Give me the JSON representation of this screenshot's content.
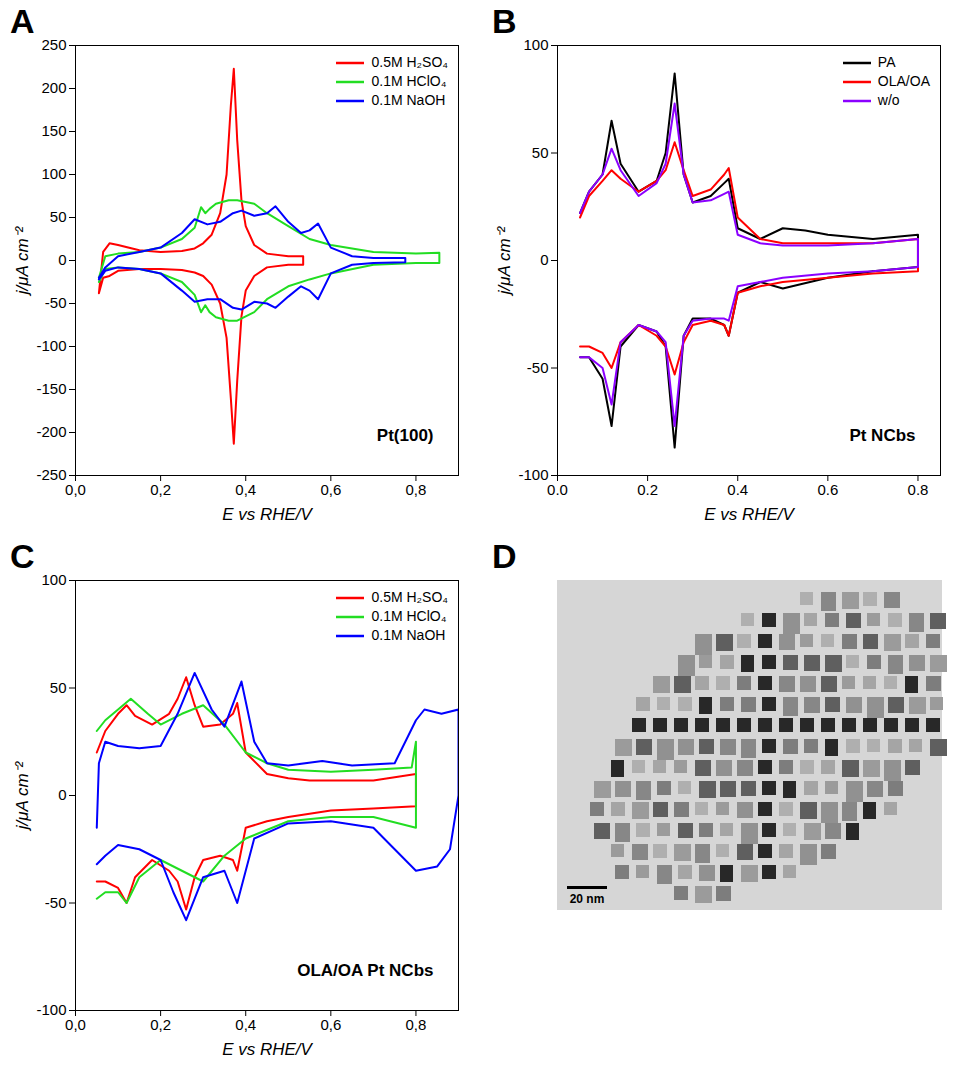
{
  "chart_data": [
    {
      "type": "line",
      "title": "A",
      "annotation": "Pt(100)",
      "x_label": "E vs RHE/V",
      "y_label": "j/μA cm⁻²",
      "xlim": [
        0,
        0.9
      ],
      "ylim": [
        -250,
        250
      ],
      "xticks": [
        {
          "value": 0,
          "label": "0,0"
        },
        {
          "value": 0.2,
          "label": "0,2"
        },
        {
          "value": 0.4,
          "label": "0,4"
        },
        {
          "value": 0.6,
          "label": "0,6"
        },
        {
          "value": 0.8,
          "label": "0,8"
        }
      ],
      "yticks": [
        -250,
        -200,
        -150,
        -100,
        -50,
        0,
        50,
        100,
        150,
        200,
        250
      ],
      "grid": false,
      "legend": "top-right",
      "series": [
        {
          "name": "0.5M H₂SO₄",
          "color": "#ff0000",
          "x": [
            0.055,
            0.065,
            0.08,
            0.1,
            0.15,
            0.2,
            0.25,
            0.28,
            0.3,
            0.32,
            0.34,
            0.355,
            0.365,
            0.372,
            0.38,
            0.39,
            0.4,
            0.42,
            0.45,
            0.5,
            0.535,
            0.535,
            0.5,
            0.45,
            0.42,
            0.4,
            0.39,
            0.38,
            0.372,
            0.365,
            0.355,
            0.34,
            0.32,
            0.3,
            0.28,
            0.25,
            0.2,
            0.15,
            0.1,
            0.08,
            0.065,
            0.055
          ],
          "values": [
            -38,
            10,
            20,
            18,
            12,
            10,
            11,
            14,
            20,
            30,
            55,
            100,
            180,
            223,
            140,
            70,
            40,
            18,
            8,
            5,
            5,
            -5,
            -5,
            -8,
            -18,
            -35,
            -65,
            -140,
            -213,
            -160,
            -90,
            -50,
            -28,
            -18,
            -14,
            -11,
            -10,
            -10,
            -12,
            -18,
            -20,
            -38
          ]
        },
        {
          "name": "0.1M HClO₄",
          "color": "#22dd22",
          "x": [
            0.055,
            0.07,
            0.1,
            0.15,
            0.2,
            0.25,
            0.28,
            0.295,
            0.305,
            0.315,
            0.33,
            0.36,
            0.38,
            0.42,
            0.45,
            0.5,
            0.55,
            0.6,
            0.7,
            0.8,
            0.855,
            0.855,
            0.8,
            0.7,
            0.6,
            0.55,
            0.5,
            0.45,
            0.42,
            0.38,
            0.36,
            0.33,
            0.315,
            0.305,
            0.295,
            0.28,
            0.25,
            0.2,
            0.15,
            0.1,
            0.07,
            0.055
          ],
          "values": [
            -20,
            5,
            8,
            10,
            15,
            25,
            38,
            62,
            55,
            60,
            66,
            70,
            70,
            66,
            55,
            40,
            25,
            18,
            10,
            8,
            9,
            -3,
            -3,
            -5,
            -15,
            -22,
            -30,
            -45,
            -60,
            -70,
            -70,
            -66,
            -60,
            -52,
            -60,
            -40,
            -25,
            -15,
            -10,
            -8,
            -10,
            -25
          ]
        },
        {
          "name": "0.1M NaOH",
          "color": "#0000ff",
          "x": [
            0.055,
            0.07,
            0.1,
            0.15,
            0.2,
            0.25,
            0.28,
            0.31,
            0.34,
            0.37,
            0.39,
            0.42,
            0.45,
            0.47,
            0.5,
            0.53,
            0.55,
            0.57,
            0.6,
            0.65,
            0.7,
            0.775,
            0.775,
            0.7,
            0.65,
            0.6,
            0.57,
            0.55,
            0.53,
            0.5,
            0.47,
            0.45,
            0.42,
            0.39,
            0.37,
            0.34,
            0.31,
            0.28,
            0.25,
            0.2,
            0.15,
            0.1,
            0.07,
            0.055
          ],
          "values": [
            -20,
            -8,
            5,
            10,
            15,
            32,
            48,
            42,
            45,
            55,
            58,
            52,
            55,
            63,
            45,
            32,
            35,
            43,
            15,
            5,
            3,
            3,
            -2,
            -3,
            -5,
            -15,
            -45,
            -35,
            -30,
            -42,
            -55,
            -50,
            -48,
            -57,
            -55,
            -45,
            -45,
            -48,
            -35,
            -15,
            -10,
            -8,
            -12,
            -22
          ]
        }
      ]
    },
    {
      "type": "line",
      "title": "B",
      "annotation": "Pt NCbs",
      "x_label": "E vs RHE/V",
      "y_label": "j/μA cm⁻²",
      "xlim": [
        0,
        0.85
      ],
      "ylim": [
        -100,
        100
      ],
      "xticks": [
        {
          "value": 0,
          "label": "0.0"
        },
        0.2,
        0.4,
        0.6,
        0.8
      ],
      "yticks": [
        -100,
        -50,
        0,
        50,
        100
      ],
      "grid": false,
      "legend": "top-right",
      "series": [
        {
          "name": "PA",
          "color": "#000000",
          "x": [
            0.05,
            0.07,
            0.1,
            0.12,
            0.14,
            0.18,
            0.22,
            0.24,
            0.26,
            0.28,
            0.3,
            0.34,
            0.37,
            0.38,
            0.4,
            0.45,
            0.5,
            0.55,
            0.6,
            0.7,
            0.8,
            0.8,
            0.7,
            0.6,
            0.5,
            0.45,
            0.4,
            0.38,
            0.37,
            0.34,
            0.3,
            0.28,
            0.26,
            0.24,
            0.22,
            0.18,
            0.14,
            0.12,
            0.1,
            0.07,
            0.05
          ],
          "values": [
            22,
            32,
            40,
            65,
            45,
            32,
            37,
            50,
            87,
            40,
            27,
            30,
            36,
            38,
            15,
            10,
            15,
            14,
            12,
            10,
            12,
            -3,
            -5,
            -8,
            -13,
            -10,
            -15,
            -35,
            -30,
            -27,
            -27,
            -35,
            -87,
            -40,
            -33,
            -30,
            -40,
            -77,
            -55,
            -45,
            -45
          ]
        },
        {
          "name": "OLA/OA",
          "color": "#ff0000",
          "x": [
            0.05,
            0.07,
            0.1,
            0.12,
            0.14,
            0.18,
            0.22,
            0.24,
            0.26,
            0.28,
            0.3,
            0.34,
            0.37,
            0.38,
            0.4,
            0.45,
            0.5,
            0.55,
            0.6,
            0.7,
            0.8,
            0.8,
            0.7,
            0.6,
            0.5,
            0.45,
            0.4,
            0.38,
            0.37,
            0.34,
            0.3,
            0.28,
            0.26,
            0.24,
            0.22,
            0.18,
            0.14,
            0.12,
            0.1,
            0.07,
            0.05
          ],
          "values": [
            20,
            30,
            37,
            42,
            38,
            32,
            37,
            42,
            55,
            42,
            30,
            33,
            40,
            43,
            20,
            10,
            8,
            8,
            8,
            8,
            10,
            -5,
            -6,
            -8,
            -10,
            -12,
            -15,
            -35,
            -30,
            -28,
            -30,
            -38,
            -53,
            -40,
            -35,
            -30,
            -38,
            -50,
            -43,
            -40,
            -40
          ]
        },
        {
          "name": "w/o",
          "color": "#8b00ff",
          "x": [
            0.05,
            0.07,
            0.1,
            0.12,
            0.14,
            0.18,
            0.22,
            0.24,
            0.26,
            0.28,
            0.3,
            0.34,
            0.37,
            0.38,
            0.4,
            0.45,
            0.5,
            0.55,
            0.6,
            0.7,
            0.8,
            0.8,
            0.7,
            0.6,
            0.5,
            0.45,
            0.4,
            0.38,
            0.37,
            0.34,
            0.3,
            0.28,
            0.26,
            0.24,
            0.22,
            0.18,
            0.14,
            0.12,
            0.1,
            0.07,
            0.05
          ],
          "values": [
            22,
            32,
            40,
            52,
            42,
            30,
            36,
            45,
            73,
            40,
            27,
            28,
            31,
            32,
            12,
            8,
            7,
            7,
            7,
            8,
            10,
            -3,
            -5,
            -6,
            -8,
            -10,
            -12,
            -28,
            -27,
            -27,
            -28,
            -35,
            -77,
            -38,
            -33,
            -30,
            -38,
            -67,
            -50,
            -45,
            -45
          ]
        }
      ]
    },
    {
      "type": "line",
      "title": "C",
      "annotation": "OLA/OA Pt NCbs",
      "x_label": "E vs RHE/V",
      "y_label": "j/μA cm⁻²",
      "xlim": [
        0,
        0.9
      ],
      "ylim": [
        -100,
        100
      ],
      "xticks": [
        {
          "value": 0,
          "label": "0,0"
        },
        {
          "value": 0.2,
          "label": "0,2"
        },
        {
          "value": 0.4,
          "label": "0,4"
        },
        {
          "value": 0.6,
          "label": "0,6"
        },
        {
          "value": 0.8,
          "label": "0,8"
        }
      ],
      "yticks": [
        -100,
        -50,
        0,
        50,
        100
      ],
      "grid": false,
      "legend": "top-right",
      "series": [
        {
          "name": "0.5M H₂SO₄",
          "color": "#ff0000",
          "x": [
            0.05,
            0.07,
            0.1,
            0.12,
            0.14,
            0.18,
            0.22,
            0.24,
            0.26,
            0.28,
            0.3,
            0.34,
            0.37,
            0.38,
            0.4,
            0.45,
            0.5,
            0.55,
            0.6,
            0.7,
            0.8,
            0.8,
            0.7,
            0.6,
            0.5,
            0.45,
            0.4,
            0.38,
            0.37,
            0.34,
            0.3,
            0.28,
            0.26,
            0.24,
            0.22,
            0.18,
            0.14,
            0.12,
            0.1,
            0.07,
            0.05
          ],
          "values": [
            20,
            30,
            38,
            42,
            37,
            33,
            38,
            45,
            55,
            42,
            32,
            33,
            38,
            43,
            20,
            10,
            8,
            7,
            7,
            7,
            10,
            -5,
            -6,
            -7,
            -10,
            -12,
            -15,
            -35,
            -30,
            -28,
            -30,
            -38,
            -53,
            -40,
            -35,
            -30,
            -38,
            -50,
            -43,
            -40,
            -40
          ]
        },
        {
          "name": "0.1M HClO₄",
          "color": "#22dd22",
          "x": [
            0.05,
            0.07,
            0.1,
            0.13,
            0.17,
            0.2,
            0.25,
            0.3,
            0.35,
            0.4,
            0.45,
            0.5,
            0.6,
            0.7,
            0.79,
            0.8,
            0.8,
            0.7,
            0.6,
            0.5,
            0.4,
            0.35,
            0.3,
            0.25,
            0.2,
            0.15,
            0.12,
            0.1,
            0.07,
            0.05
          ],
          "values": [
            30,
            35,
            40,
            45,
            38,
            33,
            38,
            42,
            33,
            20,
            15,
            12,
            11,
            12,
            13,
            25,
            -15,
            -10,
            -10,
            -12,
            -20,
            -28,
            -40,
            -35,
            -30,
            -38,
            -50,
            -45,
            -45,
            -48
          ]
        },
        {
          "name": "0.1M NaOH",
          "color": "#0000ff",
          "x": [
            0.05,
            0.055,
            0.07,
            0.1,
            0.15,
            0.2,
            0.24,
            0.28,
            0.32,
            0.35,
            0.39,
            0.42,
            0.45,
            0.5,
            0.58,
            0.65,
            0.75,
            0.8,
            0.82,
            0.86,
            0.9,
            0.9,
            0.88,
            0.85,
            0.8,
            0.75,
            0.7,
            0.6,
            0.5,
            0.42,
            0.38,
            0.35,
            0.3,
            0.26,
            0.23,
            0.2,
            0.15,
            0.1,
            0.07,
            0.05
          ],
          "values": [
            -15,
            15,
            25,
            23,
            22,
            23,
            38,
            57,
            40,
            32,
            53,
            25,
            15,
            14,
            16,
            14,
            15,
            35,
            40,
            38,
            40,
            0,
            -25,
            -33,
            -35,
            -25,
            -15,
            -12,
            -13,
            -20,
            -50,
            -35,
            -38,
            -58,
            -45,
            -30,
            -25,
            -23,
            -28,
            -32
          ]
        }
      ]
    }
  ],
  "image_panel": {
    "title": "D",
    "scale_bar": "20 nm"
  }
}
